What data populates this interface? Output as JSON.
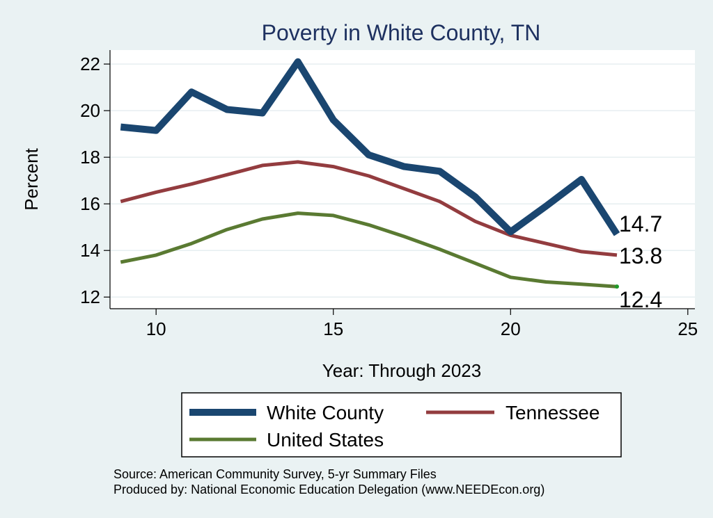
{
  "chart_data": {
    "type": "line",
    "title": "Poverty in White County, TN",
    "xlabel": "Year: Through 2023",
    "ylabel": "Percent",
    "xlim": [
      8.7,
      25.2
    ],
    "ylim": [
      11.5,
      22.6
    ],
    "xticks": [
      10,
      15,
      20,
      25
    ],
    "yticks": [
      12,
      14,
      16,
      18,
      20,
      22
    ],
    "grid": true,
    "legend_position": "bottom",
    "series": [
      {
        "name": "White County",
        "color": "#1a4670",
        "x": [
          9,
          10,
          11,
          12,
          13,
          14,
          15,
          16,
          17,
          18,
          19,
          20,
          21,
          22,
          23
        ],
        "values": [
          19.3,
          19.15,
          20.8,
          20.05,
          19.9,
          22.1,
          19.6,
          18.1,
          17.6,
          17.4,
          16.3,
          14.8,
          15.9,
          17.05,
          14.7
        ],
        "end_label": "14.7"
      },
      {
        "name": "Tennessee",
        "color": "#933c3f",
        "x": [
          9,
          10,
          11,
          12,
          13,
          14,
          15,
          16,
          17,
          18,
          19,
          20,
          21,
          22,
          23
        ],
        "values": [
          16.1,
          16.5,
          16.85,
          17.25,
          17.65,
          17.8,
          17.6,
          17.2,
          16.65,
          16.1,
          15.25,
          14.65,
          14.3,
          13.95,
          13.8
        ],
        "end_label": "13.8"
      },
      {
        "name": "United States",
        "color": "#5a7a32",
        "x": [
          9,
          10,
          11,
          12,
          13,
          14,
          15,
          16,
          17,
          18,
          19,
          20,
          21,
          22,
          23
        ],
        "values": [
          13.5,
          13.8,
          14.3,
          14.9,
          15.35,
          15.6,
          15.5,
          15.1,
          14.6,
          14.05,
          13.45,
          12.85,
          12.65,
          12.55,
          12.45
        ],
        "end_label": "12.4"
      }
    ],
    "notes": [
      "Source: American Community Survey, 5-yr Summary Files",
      "Produced by: National Economic Education Delegation (www.NEEDEcon.org)"
    ]
  }
}
